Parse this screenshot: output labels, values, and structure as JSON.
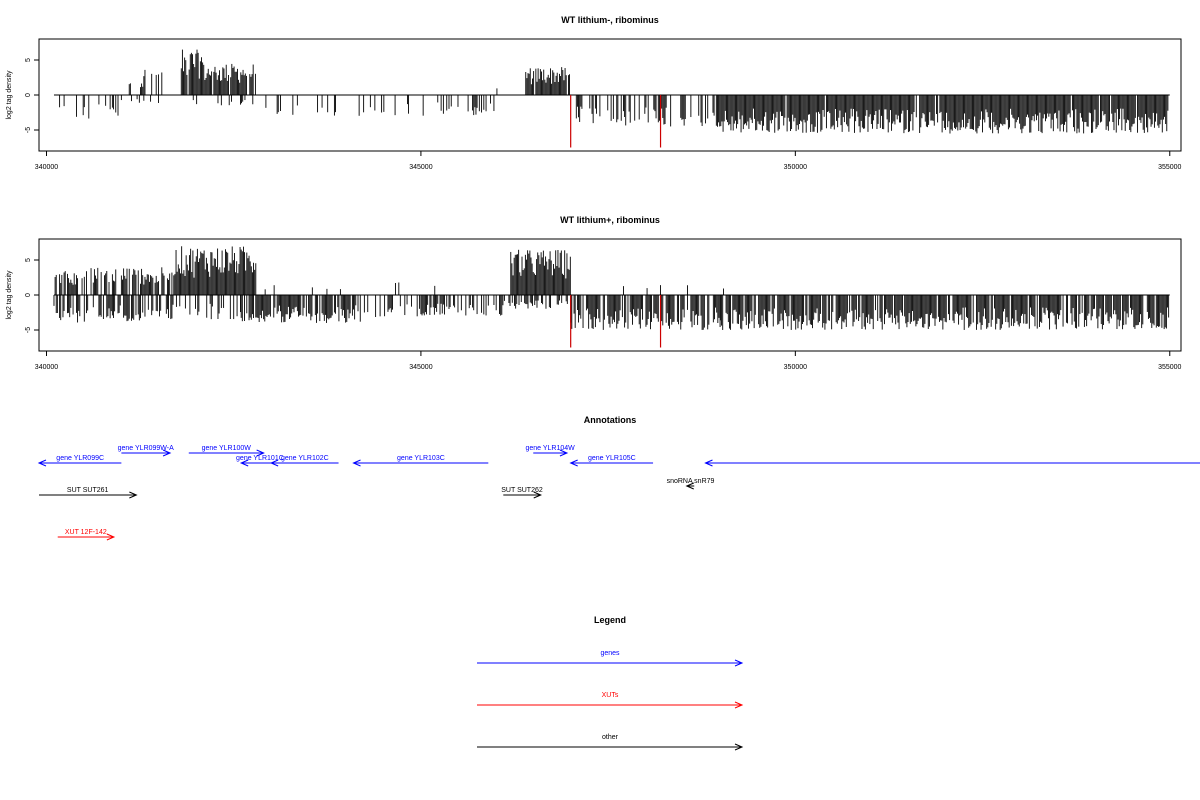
{
  "chart_data": [
    {
      "type": "bar",
      "title": "WT lithium-, ribominus",
      "ylabel": "log2 tag density",
      "xlim": [
        339900,
        355150
      ],
      "ylim": [
        -8,
        8
      ],
      "yticks": [
        -5,
        0,
        5
      ],
      "xticks": [
        340000,
        345000,
        350000,
        355000
      ],
      "series": [
        {
          "strand": "+",
          "color": "#000000",
          "ranges": [
            {
              "x": [
                340100,
                340700
              ],
              "ymax": 2.5,
              "density": 0.1
            },
            {
              "x": [
                341000,
                341300
              ],
              "ymax": 2.0,
              "density": 0.15
            },
            {
              "x": [
                341300,
                341600
              ],
              "ymax": 4.0,
              "density": 0.3
            },
            {
              "x": [
                341800,
                342100
              ],
              "ymax": 6.5,
              "density": 0.9
            },
            {
              "x": [
                342100,
                342800
              ],
              "ymax": 4.5,
              "density": 0.9
            },
            {
              "x": [
                346000,
                346100
              ],
              "ymax": 1.0,
              "density": 0.2
            },
            {
              "x": [
                346400,
                347000
              ],
              "ymax": 4.0,
              "density": 0.9
            }
          ]
        },
        {
          "strand": "-",
          "color": "#000000",
          "ranges": [
            {
              "x": [
                340100,
                341000
              ],
              "ymin": -3.5,
              "density": 0.2
            },
            {
              "x": [
                341000,
                342900
              ],
              "ymin": -1.5,
              "density": 0.1
            },
            {
              "x": [
                342900,
                346000
              ],
              "ymin": -3.0,
              "density": 0.18
            },
            {
              "x": [
                347000,
                348900
              ],
              "ymin": -4.5,
              "density": 0.35
            },
            {
              "x": [
                348900,
                355000
              ],
              "ymin": -5.5,
              "density": 0.95
            }
          ]
        }
      ],
      "highlights": [
        {
          "x": 347000,
          "y": -7.5,
          "color": "#cc0000"
        },
        {
          "x": 348200,
          "y": -7.5,
          "color": "#cc0000"
        }
      ]
    },
    {
      "type": "bar",
      "title": "WT lithium+, ribominus",
      "ylabel": "log2 tag density",
      "xlim": [
        339900,
        355150
      ],
      "ylim": [
        -8,
        8
      ],
      "yticks": [
        -5,
        0,
        5
      ],
      "xticks": [
        340000,
        345000,
        350000,
        355000
      ],
      "series": [
        {
          "strand": "+",
          "color": "#000000",
          "ranges": [
            {
              "x": [
                340100,
                341000
              ],
              "ymax": 4.0,
              "density": 0.6
            },
            {
              "x": [
                341000,
                341700
              ],
              "ymax": 4.0,
              "density": 0.8
            },
            {
              "x": [
                341700,
                342800
              ],
              "ymax": 7.0,
              "density": 1.0
            },
            {
              "x": [
                342800,
                345200
              ],
              "ymax": 2.0,
              "density": 0.04
            },
            {
              "x": [
                346200,
                347000
              ],
              "ymax": 6.5,
              "density": 1.0
            },
            {
              "x": [
                347000,
                349500
              ],
              "ymax": 1.5,
              "density": 0.08
            }
          ]
        },
        {
          "strand": "-",
          "color": "#000000",
          "ranges": [
            {
              "x": [
                340100,
                341300
              ],
              "ymin": -4.0,
              "density": 0.7
            },
            {
              "x": [
                341300,
                342600
              ],
              "ymin": -3.5,
              "density": 0.45
            },
            {
              "x": [
                342600,
                344200
              ],
              "ymin": -4.0,
              "density": 0.75
            },
            {
              "x": [
                344200,
                345000
              ],
              "ymin": -3.5,
              "density": 0.4
            },
            {
              "x": [
                345000,
                346100
              ],
              "ymin": -3.0,
              "density": 0.5
            },
            {
              "x": [
                346100,
                347000
              ],
              "ymin": -2.0,
              "density": 0.5
            },
            {
              "x": [
                347000,
                349000
              ],
              "ymin": -5.0,
              "density": 0.8
            },
            {
              "x": [
                349000,
                355000
              ],
              "ymin": -5.0,
              "density": 0.85
            }
          ]
        }
      ],
      "highlights": [
        {
          "x": 347000,
          "y": -7.5,
          "color": "#cc0000"
        },
        {
          "x": 348200,
          "y": -7.5,
          "color": "#cc0000"
        }
      ]
    }
  ],
  "annotations": {
    "title": "Annotations",
    "genes_color": "#0000ff",
    "xuts_color": "#ff0000",
    "other_color": "#000000",
    "items": [
      {
        "label": "gene YLR099C",
        "start": 339900,
        "end": 341000,
        "strand": "-",
        "kind": "gene",
        "row": 1
      },
      {
        "label": "gene YLR099W-A",
        "start": 341000,
        "end": 341650,
        "strand": "+",
        "kind": "gene",
        "row": 0
      },
      {
        "label": "gene YLR100W",
        "start": 341900,
        "end": 342900,
        "strand": "+",
        "kind": "gene",
        "row": 0
      },
      {
        "label": "gene YLR101C",
        "start": 342600,
        "end": 343100,
        "strand": "-",
        "kind": "gene",
        "row": 1
      },
      {
        "label": "gene YLR102C",
        "start": 343000,
        "end": 343900,
        "strand": "-",
        "kind": "gene",
        "row": 1
      },
      {
        "label": "gene YLR103C",
        "start": 344100,
        "end": 345900,
        "strand": "-",
        "kind": "gene",
        "row": 1
      },
      {
        "label": "gene YLR104W",
        "start": 346500,
        "end": 346950,
        "strand": "+",
        "kind": "gene",
        "row": 0
      },
      {
        "label": "gene YLR105C",
        "start": 347000,
        "end": 348100,
        "strand": "-",
        "kind": "gene",
        "row": 1
      },
      {
        "label": "",
        "start": 348800,
        "end": 355150,
        "strand": "-",
        "kind": "gene",
        "row": 1
      },
      {
        "label": "SUT SUT261",
        "start": 339900,
        "end": 341200,
        "strand": "+",
        "kind": "other",
        "row": 2
      },
      {
        "label": "SUT SUT262",
        "start": 346100,
        "end": 346600,
        "strand": "+",
        "kind": "other",
        "row": 2
      },
      {
        "label": "snoRNA snR79",
        "start": 348550,
        "end": 348650,
        "strand": "-",
        "kind": "other",
        "row": 3
      },
      {
        "label": "XUT 12F-142",
        "start": 340150,
        "end": 340900,
        "strand": "+",
        "kind": "xut",
        "row": 4
      }
    ]
  },
  "legend": {
    "title": "Legend",
    "items": [
      {
        "label": "genes",
        "color": "#0000ff"
      },
      {
        "label": "XUTs",
        "color": "#ff0000"
      },
      {
        "label": "other",
        "color": "#000000"
      }
    ]
  }
}
